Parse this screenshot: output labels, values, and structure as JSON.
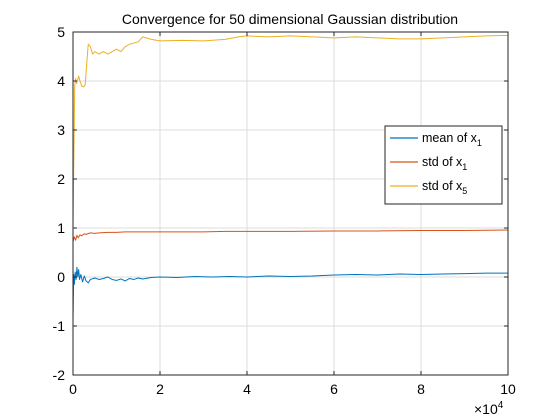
{
  "chart_data": {
    "type": "line",
    "title": "Convergence for 50 dimensional Gaussian distribution",
    "xlabel": "",
    "ylabel": "",
    "xlim": [
      0,
      100000
    ],
    "ylim": [
      -2,
      5
    ],
    "x_ticks": [
      0,
      20000,
      40000,
      60000,
      80000,
      100000
    ],
    "x_tick_labels": [
      "0",
      "2",
      "4",
      "6",
      "8",
      "10"
    ],
    "x_exponent_base": "×10",
    "x_exponent_power": "4",
    "y_ticks": [
      -2,
      -1,
      0,
      1,
      2,
      3,
      4,
      5
    ],
    "y_tick_labels": [
      "-2",
      "-1",
      "0",
      "1",
      "2",
      "3",
      "4",
      "5"
    ],
    "grid": true,
    "legend_position": "right",
    "series": [
      {
        "name": "mean of x",
        "name_sub": "1",
        "color": "#0072BD",
        "points": [
          [
            0,
            -0.9
          ],
          [
            150,
            0.05
          ],
          [
            300,
            -0.15
          ],
          [
            500,
            0.1
          ],
          [
            700,
            -0.05
          ],
          [
            900,
            0.2
          ],
          [
            1100,
            0.0
          ],
          [
            1300,
            0.15
          ],
          [
            1500,
            -0.05
          ],
          [
            1800,
            0.05
          ],
          [
            2200,
            -0.1
          ],
          [
            2600,
            0.02
          ],
          [
            3000,
            -0.08
          ],
          [
            3500,
            -0.12
          ],
          [
            4000,
            -0.05
          ],
          [
            5000,
            -0.02
          ],
          [
            6000,
            -0.05
          ],
          [
            7000,
            -0.03
          ],
          [
            8000,
            0.0
          ],
          [
            9000,
            -0.05
          ],
          [
            10000,
            -0.07
          ],
          [
            11000,
            -0.04
          ],
          [
            12000,
            -0.08
          ],
          [
            13000,
            -0.03
          ],
          [
            14000,
            -0.05
          ],
          [
            15000,
            -0.02
          ],
          [
            16000,
            -0.04
          ],
          [
            18000,
            -0.01
          ],
          [
            20000,
            0.0
          ],
          [
            24000,
            -0.01
          ],
          [
            28000,
            0.01
          ],
          [
            32000,
            0.0
          ],
          [
            36000,
            0.01
          ],
          [
            40000,
            0.0
          ],
          [
            45000,
            0.02
          ],
          [
            50000,
            0.01
          ],
          [
            55000,
            0.02
          ],
          [
            60000,
            0.04
          ],
          [
            65000,
            0.05
          ],
          [
            70000,
            0.04
          ],
          [
            75000,
            0.06
          ],
          [
            80000,
            0.05
          ],
          [
            85000,
            0.06
          ],
          [
            90000,
            0.07
          ],
          [
            95000,
            0.08
          ],
          [
            100000,
            0.08
          ]
        ]
      },
      {
        "name": "std of x",
        "name_sub": "1",
        "color": "#D95319",
        "points": [
          [
            0,
            0.72
          ],
          [
            300,
            0.82
          ],
          [
            600,
            0.75
          ],
          [
            900,
            0.85
          ],
          [
            1200,
            0.8
          ],
          [
            1600,
            0.86
          ],
          [
            2000,
            0.84
          ],
          [
            2500,
            0.88
          ],
          [
            3000,
            0.87
          ],
          [
            4000,
            0.9
          ],
          [
            5000,
            0.89
          ],
          [
            6000,
            0.9
          ],
          [
            8000,
            0.91
          ],
          [
            10000,
            0.91
          ],
          [
            12000,
            0.92
          ],
          [
            15000,
            0.92
          ],
          [
            20000,
            0.92
          ],
          [
            25000,
            0.92
          ],
          [
            30000,
            0.92
          ],
          [
            35000,
            0.93
          ],
          [
            40000,
            0.93
          ],
          [
            50000,
            0.93
          ],
          [
            60000,
            0.94
          ],
          [
            70000,
            0.94
          ],
          [
            80000,
            0.95
          ],
          [
            90000,
            0.95
          ],
          [
            100000,
            0.96
          ]
        ]
      },
      {
        "name": "std of x",
        "name_sub": "5",
        "color": "#EDB120",
        "points": [
          [
            0,
            1.0
          ],
          [
            200,
            2.5
          ],
          [
            400,
            3.9
          ],
          [
            600,
            4.05
          ],
          [
            800,
            3.95
          ],
          [
            1000,
            4.0
          ],
          [
            1300,
            4.1
          ],
          [
            1600,
            4.0
          ],
          [
            2000,
            3.9
          ],
          [
            2400,
            3.88
          ],
          [
            2800,
            3.92
          ],
          [
            3200,
            4.4
          ],
          [
            3500,
            4.75
          ],
          [
            4000,
            4.7
          ],
          [
            4500,
            4.55
          ],
          [
            5000,
            4.6
          ],
          [
            6000,
            4.55
          ],
          [
            7000,
            4.6
          ],
          [
            8000,
            4.55
          ],
          [
            9000,
            4.6
          ],
          [
            10000,
            4.65
          ],
          [
            11000,
            4.6
          ],
          [
            12000,
            4.7
          ],
          [
            13000,
            4.75
          ],
          [
            15000,
            4.8
          ],
          [
            16000,
            4.9
          ],
          [
            18000,
            4.85
          ],
          [
            20000,
            4.82
          ],
          [
            25000,
            4.83
          ],
          [
            30000,
            4.82
          ],
          [
            35000,
            4.85
          ],
          [
            38000,
            4.9
          ],
          [
            40000,
            4.92
          ],
          [
            45000,
            4.9
          ],
          [
            50000,
            4.92
          ],
          [
            55000,
            4.9
          ],
          [
            60000,
            4.88
          ],
          [
            65000,
            4.9
          ],
          [
            70000,
            4.88
          ],
          [
            75000,
            4.86
          ],
          [
            80000,
            4.86
          ],
          [
            85000,
            4.88
          ],
          [
            90000,
            4.9
          ],
          [
            95000,
            4.92
          ],
          [
            100000,
            4.93
          ]
        ]
      }
    ]
  }
}
